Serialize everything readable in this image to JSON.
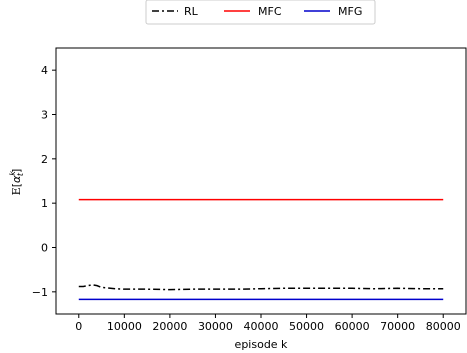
{
  "chart_data": {
    "type": "line",
    "xlabel": "episode k",
    "ylabel": "E[α_t^k]",
    "xlim": [
      -5000,
      85000
    ],
    "ylim": [
      -1.5,
      4.5
    ],
    "xticks": [
      0,
      10000,
      20000,
      30000,
      40000,
      50000,
      60000,
      70000,
      80000
    ],
    "yticks": [
      -1,
      0,
      1,
      2,
      3,
      4
    ],
    "grid": false,
    "legend_position": "top-center",
    "series": [
      {
        "name": "RL",
        "color": "#000000",
        "style": "dashdot",
        "x": [
          0,
          1000,
          2000,
          3000,
          4000,
          5000,
          6000,
          8000,
          10000,
          12000,
          15000,
          20000,
          25000,
          30000,
          35000,
          40000,
          45000,
          50000,
          55000,
          60000,
          65000,
          70000,
          75000,
          80000
        ],
        "y": [
          -0.88,
          -0.88,
          -0.86,
          -0.84,
          -0.86,
          -0.9,
          -0.91,
          -0.93,
          -0.94,
          -0.94,
          -0.94,
          -0.95,
          -0.94,
          -0.94,
          -0.94,
          -0.93,
          -0.92,
          -0.92,
          -0.92,
          -0.92,
          -0.93,
          -0.92,
          -0.93,
          -0.93
        ]
      },
      {
        "name": "MFC",
        "color": "#ff0000",
        "style": "solid",
        "x": [
          0,
          80000
        ],
        "y": [
          1.08,
          1.08
        ]
      },
      {
        "name": "MFG",
        "color": "#0000cc",
        "style": "solid",
        "x": [
          0,
          80000
        ],
        "y": [
          -1.17,
          -1.17
        ]
      }
    ]
  }
}
